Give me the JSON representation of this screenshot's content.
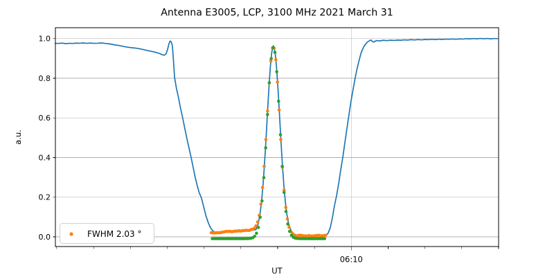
{
  "chart_data": {
    "type": "line",
    "title": "Antenna E3005, LCP, 3100 MHz 2021 March 31",
    "xlabel": "UT",
    "ylabel": "a.u.",
    "x_axis": {
      "unit": "UT minutes after 06:00",
      "range": [
        1.964,
        14.0
      ],
      "major_ticks": [
        {
          "t": 10.0,
          "label": "06:10"
        }
      ],
      "minor_ticks": [
        2,
        3,
        4,
        5,
        6,
        7,
        8,
        9,
        11,
        12,
        13,
        14
      ],
      "grid_on_major": true
    },
    "y_axis": {
      "range": [
        -0.049,
        1.055
      ],
      "ticks": [
        {
          "v": 0.0,
          "label": "0.0"
        },
        {
          "v": 0.2,
          "label": "0.2"
        },
        {
          "v": 0.4,
          "label": "0.4"
        },
        {
          "v": 0.6,
          "label": "0.6"
        },
        {
          "v": 0.8,
          "label": "0.8"
        },
        {
          "v": 1.0,
          "label": "1.0"
        }
      ],
      "grid": true
    },
    "legend": {
      "label": "FWHM 2.03 °",
      "marker_color": "#ff7f0e",
      "location": "lower-left"
    },
    "fwhm_degrees": 2.03,
    "colors": {
      "line": "#1f77b4",
      "data_points": "#ff7f0e",
      "fit_points": "#2ca02c",
      "grid": "#b0b0b0",
      "spine": "#000000"
    },
    "series": [
      {
        "name": "drift-scan-line",
        "type": "line",
        "color": "#1f77b4",
        "width": 1.7,
        "points": [
          [
            1.96,
            0.976
          ],
          [
            2.05,
            0.9755
          ],
          [
            2.15,
            0.977
          ],
          [
            2.25,
            0.9745
          ],
          [
            2.34,
            0.976
          ],
          [
            2.44,
            0.9755
          ],
          [
            2.53,
            0.977
          ],
          [
            2.63,
            0.9765
          ],
          [
            2.72,
            0.978
          ],
          [
            2.82,
            0.976
          ],
          [
            2.91,
            0.9775
          ],
          [
            3.0,
            0.976
          ],
          [
            3.1,
            0.9765
          ],
          [
            3.22,
            0.978
          ],
          [
            3.31,
            0.9755
          ],
          [
            3.4,
            0.974
          ],
          [
            3.49,
            0.9715
          ],
          [
            3.58,
            0.968
          ],
          [
            3.68,
            0.9655
          ],
          [
            3.77,
            0.962
          ],
          [
            3.86,
            0.9585
          ],
          [
            3.95,
            0.956
          ],
          [
            4.05,
            0.9535
          ],
          [
            4.14,
            0.952
          ],
          [
            4.23,
            0.9495
          ],
          [
            4.33,
            0.9455
          ],
          [
            4.42,
            0.9415
          ],
          [
            4.51,
            0.938
          ],
          [
            4.61,
            0.934
          ],
          [
            4.7,
            0.93
          ],
          [
            4.78,
            0.9255
          ],
          [
            4.83,
            0.9215
          ],
          [
            4.88,
            0.918
          ],
          [
            4.92,
            0.916
          ],
          [
            4.97,
            0.923
          ],
          [
            5.01,
            0.945
          ],
          [
            5.05,
            0.975
          ],
          [
            5.08,
            0.9875
          ],
          [
            5.11,
            0.983
          ],
          [
            5.14,
            0.965
          ],
          [
            5.17,
            0.89
          ],
          [
            5.2,
            0.805
          ],
          [
            5.25,
            0.75
          ],
          [
            5.31,
            0.7
          ],
          [
            5.36,
            0.65
          ],
          [
            5.42,
            0.6
          ],
          [
            5.48,
            0.545
          ],
          [
            5.53,
            0.5
          ],
          [
            5.59,
            0.45
          ],
          [
            5.65,
            0.4
          ],
          [
            5.7,
            0.355
          ],
          [
            5.76,
            0.3
          ],
          [
            5.82,
            0.255
          ],
          [
            5.87,
            0.222
          ],
          [
            5.93,
            0.196
          ],
          [
            5.99,
            0.152
          ],
          [
            6.05,
            0.108
          ],
          [
            6.11,
            0.074
          ],
          [
            6.17,
            0.048
          ],
          [
            6.23,
            0.032
          ],
          [
            6.29,
            0.024
          ],
          [
            6.38,
            0.022
          ],
          [
            6.47,
            0.0225
          ],
          [
            6.57,
            0.024
          ],
          [
            6.66,
            0.025
          ],
          [
            6.76,
            0.026
          ],
          [
            6.85,
            0.027
          ],
          [
            6.94,
            0.0285
          ],
          [
            7.04,
            0.03
          ],
          [
            7.13,
            0.031
          ],
          [
            7.22,
            0.0325
          ],
          [
            7.32,
            0.034
          ],
          [
            7.41,
            0.036
          ],
          [
            7.47,
            0.065
          ],
          [
            7.52,
            0.114
          ],
          [
            7.56,
            0.174
          ],
          [
            7.6,
            0.256
          ],
          [
            7.64,
            0.36
          ],
          [
            7.68,
            0.482
          ],
          [
            7.72,
            0.615
          ],
          [
            7.76,
            0.744
          ],
          [
            7.8,
            0.855
          ],
          [
            7.84,
            0.932
          ],
          [
            7.885,
            0.964
          ],
          [
            7.93,
            0.932
          ],
          [
            7.97,
            0.855
          ],
          [
            8.01,
            0.744
          ],
          [
            8.05,
            0.615
          ],
          [
            8.09,
            0.482
          ],
          [
            8.13,
            0.36
          ],
          [
            8.17,
            0.256
          ],
          [
            8.21,
            0.174
          ],
          [
            8.25,
            0.114
          ],
          [
            8.29,
            0.073
          ],
          [
            8.33,
            0.046
          ],
          [
            8.38,
            0.027
          ],
          [
            8.44,
            0.015
          ],
          [
            8.52,
            0.008
          ],
          [
            8.62,
            0.005
          ],
          [
            8.72,
            0.004
          ],
          [
            8.82,
            0.0045
          ],
          [
            8.92,
            0.004
          ],
          [
            9.02,
            0.0045
          ],
          [
            9.12,
            0.004
          ],
          [
            9.22,
            0.005
          ],
          [
            9.3,
            0.0065
          ],
          [
            9.37,
            0.018
          ],
          [
            9.43,
            0.047
          ],
          [
            9.49,
            0.1
          ],
          [
            9.54,
            0.155
          ],
          [
            9.6,
            0.208
          ],
          [
            9.66,
            0.272
          ],
          [
            9.71,
            0.335
          ],
          [
            9.77,
            0.402
          ],
          [
            9.82,
            0.468
          ],
          [
            9.88,
            0.545
          ],
          [
            9.94,
            0.62
          ],
          [
            9.99,
            0.682
          ],
          [
            10.05,
            0.745
          ],
          [
            10.11,
            0.806
          ],
          [
            10.16,
            0.851
          ],
          [
            10.22,
            0.896
          ],
          [
            10.27,
            0.93
          ],
          [
            10.33,
            0.956
          ],
          [
            10.39,
            0.9725
          ],
          [
            10.44,
            0.983
          ],
          [
            10.5,
            0.99
          ],
          [
            10.54,
            0.9925
          ],
          [
            10.57,
            0.9855
          ],
          [
            10.61,
            0.982
          ],
          [
            10.65,
            0.987
          ],
          [
            10.69,
            0.99
          ],
          [
            10.78,
            0.9885
          ],
          [
            10.87,
            0.9915
          ],
          [
            10.97,
            0.9895
          ],
          [
            11.06,
            0.992
          ],
          [
            11.16,
            0.9905
          ],
          [
            11.25,
            0.9925
          ],
          [
            11.34,
            0.9915
          ],
          [
            11.44,
            0.9935
          ],
          [
            11.53,
            0.9925
          ],
          [
            11.62,
            0.9945
          ],
          [
            11.72,
            0.993
          ],
          [
            11.81,
            0.995
          ],
          [
            11.91,
            0.9935
          ],
          [
            12.0,
            0.9955
          ],
          [
            12.09,
            0.9945
          ],
          [
            12.19,
            0.9965
          ],
          [
            12.28,
            0.995
          ],
          [
            12.38,
            0.997
          ],
          [
            12.47,
            0.9955
          ],
          [
            12.56,
            0.9975
          ],
          [
            12.66,
            0.9965
          ],
          [
            12.75,
            0.998
          ],
          [
            12.84,
            0.9965
          ],
          [
            12.94,
            0.9985
          ],
          [
            13.03,
            0.9975
          ],
          [
            13.13,
            0.9995
          ],
          [
            13.22,
            0.9985
          ],
          [
            13.31,
            1.0
          ],
          [
            13.41,
            0.999
          ],
          [
            13.5,
            1.0005
          ],
          [
            13.6,
            0.9995
          ],
          [
            13.69,
            1.0005
          ],
          [
            13.78,
            0.999
          ],
          [
            13.88,
            1.0
          ],
          [
            13.97,
            1.0
          ]
        ]
      },
      {
        "name": "source-scan-points",
        "type": "scatter-model",
        "color": "#ff7f0e",
        "radius": 2.3,
        "model": {
          "t_start": 6.195,
          "t_end": 9.315,
          "step": 0.045,
          "gauss": {
            "amplitude": 0.94,
            "center": 7.885,
            "sigma": 0.172
          },
          "baseline": {
            "left_start": 0.0205,
            "left_end": 0.036,
            "left_until": 7.45,
            "right": 0.0055,
            "right_from": 8.3
          },
          "offset": 0.0,
          "noise": 0.0022,
          "seed": 13
        }
      },
      {
        "name": "gaussian-fit-points",
        "type": "scatter-model",
        "color": "#2ca02c",
        "radius": 2.3,
        "model": {
          "t_start": 6.225,
          "t_end": 9.285,
          "step": 0.05,
          "gauss": {
            "amplitude": 0.965,
            "center": 7.885,
            "sigma": 0.172
          },
          "baseline": {
            "left_start": 0.0,
            "left_end": 0.0,
            "left_until": 6.5,
            "right": 0.0,
            "right_from": 6.6
          },
          "offset": -0.009,
          "noise": 0.0,
          "seed": 5
        }
      }
    ]
  }
}
